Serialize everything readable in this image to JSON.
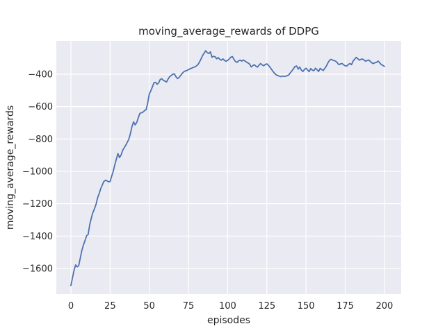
{
  "figure": {
    "title": "moving_average_rewards of DDPG"
  },
  "chart_data": {
    "type": "line",
    "title": "moving_average_rewards of DDPG",
    "xlabel": "episodes",
    "ylabel": "moving_average_rewards",
    "x_ticks": [
      0,
      25,
      50,
      75,
      100,
      125,
      150,
      175,
      200
    ],
    "y_ticks": [
      -400,
      -600,
      -800,
      -1000,
      -1200,
      -1400,
      -1600
    ],
    "xlim": [
      -9.3,
      210.7
    ],
    "ylim": [
      -1758.6,
      -194.3
    ],
    "grid": true,
    "legend": "none",
    "style": {
      "plot_background": "#EAEAF2",
      "grid_color": "#FFFFFF",
      "line_color": "#4C72B0",
      "text_color": "#262626",
      "figure_background": "#FFFFFF"
    },
    "series": [
      {
        "name": "moving_average_rewards",
        "x_start": 0,
        "x_step": 1,
        "values": [
          -1705,
          -1658,
          -1612,
          -1578,
          -1590,
          -1582,
          -1535,
          -1488,
          -1455,
          -1428,
          -1398,
          -1390,
          -1330,
          -1290,
          -1255,
          -1232,
          -1205,
          -1165,
          -1138,
          -1108,
          -1085,
          -1062,
          -1056,
          -1058,
          -1065,
          -1063,
          -1030,
          -1000,
          -960,
          -925,
          -890,
          -915,
          -900,
          -870,
          -855,
          -838,
          -820,
          -800,
          -765,
          -722,
          -694,
          -713,
          -698,
          -668,
          -642,
          -638,
          -634,
          -625,
          -618,
          -578,
          -522,
          -502,
          -478,
          -452,
          -450,
          -462,
          -453,
          -432,
          -428,
          -438,
          -442,
          -448,
          -430,
          -415,
          -408,
          -400,
          -398,
          -415,
          -427,
          -420,
          -408,
          -395,
          -385,
          -380,
          -377,
          -372,
          -366,
          -363,
          -358,
          -355,
          -349,
          -341,
          -325,
          -306,
          -285,
          -270,
          -255,
          -267,
          -272,
          -262,
          -295,
          -289,
          -292,
          -305,
          -297,
          -308,
          -313,
          -305,
          -315,
          -320,
          -314,
          -306,
          -295,
          -291,
          -308,
          -322,
          -327,
          -317,
          -313,
          -319,
          -312,
          -318,
          -325,
          -331,
          -337,
          -355,
          -347,
          -341,
          -350,
          -356,
          -344,
          -334,
          -342,
          -348,
          -340,
          -336,
          -345,
          -356,
          -370,
          -384,
          -395,
          -404,
          -408,
          -412,
          -415,
          -411,
          -414,
          -412,
          -409,
          -404,
          -391,
          -379,
          -366,
          -352,
          -349,
          -368,
          -356,
          -374,
          -383,
          -371,
          -363,
          -374,
          -384,
          -365,
          -375,
          -378,
          -363,
          -372,
          -383,
          -364,
          -371,
          -377,
          -363,
          -349,
          -329,
          -314,
          -308,
          -313,
          -316,
          -320,
          -330,
          -341,
          -336,
          -334,
          -342,
          -348,
          -349,
          -339,
          -334,
          -341,
          -319,
          -307,
          -296,
          -304,
          -313,
          -308,
          -306,
          -312,
          -320,
          -315,
          -312,
          -321,
          -330,
          -334,
          -329,
          -326,
          -319,
          -329,
          -341,
          -345,
          -352
        ]
      }
    ]
  }
}
